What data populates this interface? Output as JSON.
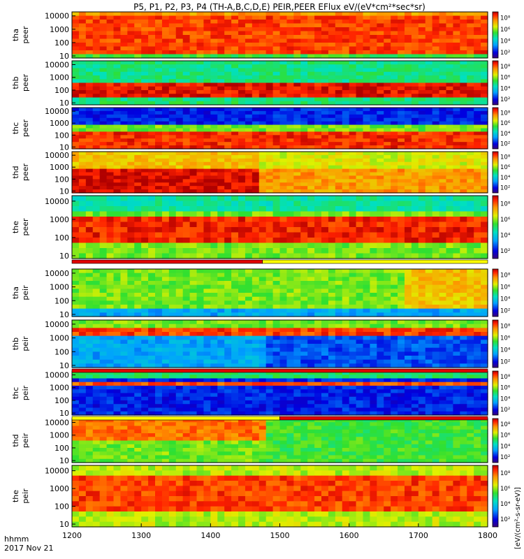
{
  "chart_data": {
    "type": "heatmap",
    "title": "P5, P1, P2, P3, P4 (TH-A,B,C,D,E) PEIR,PEER EFlux eV/(eV*cm²*sec*sr)",
    "xlabel_line1": "hhmm",
    "xlabel_line2": "2017 Nov 21",
    "x_ticks": [
      "1200",
      "1300",
      "1400",
      "1500",
      "1600",
      "1700",
      "1800"
    ],
    "xlim": [
      1200,
      1800
    ],
    "y_ticks": [
      "10",
      "100",
      "1000",
      "10000"
    ],
    "y_scale": "log",
    "colorbar_unit": "[eV/(cm²-s-sr-eV)]",
    "colorbar_ticks": [
      "10²",
      "10⁴",
      "10⁶",
      "10⁸"
    ],
    "panels": [
      {
        "probe": "tha",
        "instrument": "peer",
        "label": "tha\npeer"
      },
      {
        "probe": "thb",
        "instrument": "peer",
        "label": "thb\npeer"
      },
      {
        "probe": "thc",
        "instrument": "peer",
        "label": "thc\npeer"
      },
      {
        "probe": "thd",
        "instrument": "peer",
        "label": "thd\npeer"
      },
      {
        "probe": "the",
        "instrument": "peer",
        "label": "the\npeer"
      },
      {
        "probe": "tha",
        "instrument": "peir",
        "label": "tha\npeir"
      },
      {
        "probe": "thb",
        "instrument": "peir",
        "label": "thb\npeir"
      },
      {
        "probe": "thc",
        "instrument": "peir",
        "label": "thc\npeir"
      },
      {
        "probe": "thd",
        "instrument": "peir",
        "label": "thd\npeir"
      },
      {
        "probe": "the",
        "instrument": "peir",
        "label": "the\npeir"
      }
    ],
    "mode_bars": [
      {
        "after_panel": 5,
        "segments": [
          {
            "from": 1200,
            "to": 1475,
            "color": "#e00000"
          },
          {
            "from": 1475,
            "to": 1800,
            "color": "#ffff00"
          }
        ]
      },
      {
        "after_panel": 7,
        "segments": [
          {
            "from": 1200,
            "to": 1800,
            "color": "#e00000"
          }
        ]
      },
      {
        "after_panel": 8,
        "segments": [
          {
            "from": 1200,
            "to": 1500,
            "color": "#ffff00"
          },
          {
            "from": 1500,
            "to": 1800,
            "color": "#e00000"
          }
        ]
      }
    ]
  }
}
